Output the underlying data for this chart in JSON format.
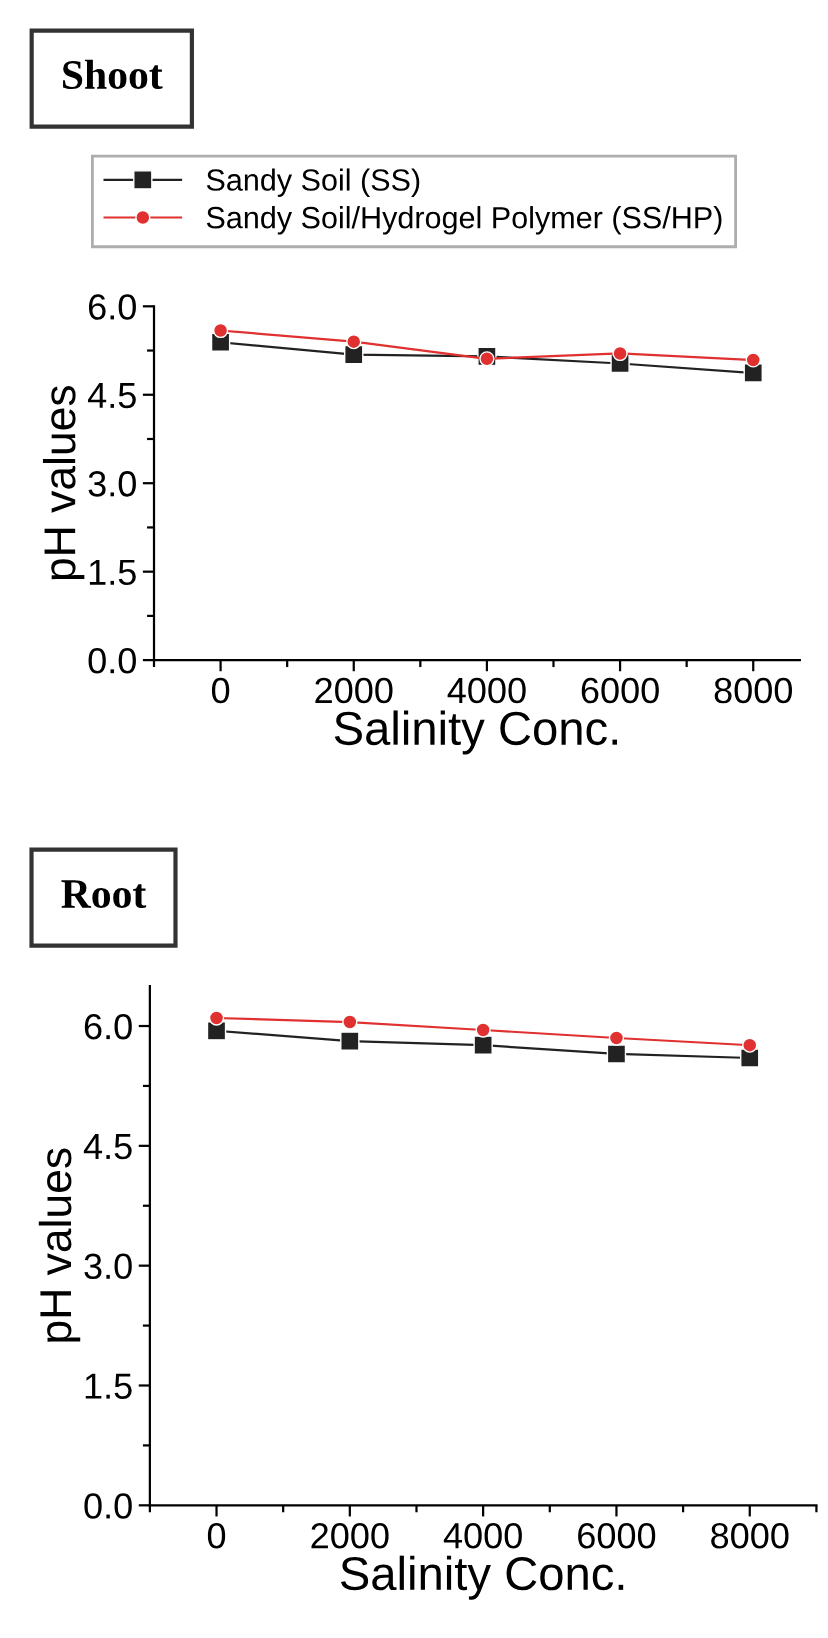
{
  "chart_data": [
    {
      "type": "line",
      "title": "Shoot",
      "xlabel": "Salinity Conc.",
      "ylabel": "pH values",
      "x": [
        0,
        2000,
        4000,
        6000,
        8000
      ],
      "xlim": [
        -1000,
        8700
      ],
      "xticks": [
        0,
        2000,
        4000,
        6000,
        8000
      ],
      "ylim": [
        0,
        6
      ],
      "yticks": [
        {
          "value": 0,
          "label": "0.0"
        },
        {
          "value": 1.5,
          "label": "1.5"
        },
        {
          "value": 3,
          "label": "3.0"
        },
        {
          "value": 4.5,
          "label": "4.5"
        },
        {
          "value": 6,
          "label": "6.0"
        }
      ],
      "grid": false,
      "legend": "top",
      "line_style": "solid",
      "series": [
        {
          "name": "Sandy Soil (SS)",
          "color": "#222222",
          "marker": "square",
          "values": [
            5.39,
            5.18,
            5.15,
            5.03,
            4.87
          ]
        },
        {
          "name": "Sandy Soil/Hydrogel Polymer (SS/HP)",
          "color": "#e03030",
          "marker": "circle",
          "values": [
            5.59,
            5.4,
            5.11,
            5.2,
            5.09
          ]
        }
      ]
    },
    {
      "type": "line",
      "title": "Root",
      "xlabel": "Salinity Conc.",
      "ylabel": "pH values",
      "x": [
        0,
        2000,
        4000,
        6000,
        8000
      ],
      "xlim": [
        -1000,
        9000
      ],
      "xticks": [
        0,
        2000,
        4000,
        6000,
        8000
      ],
      "ylim": [
        0,
        6.5
      ],
      "yticks": [
        {
          "value": 0,
          "label": "0.0"
        },
        {
          "value": 1.5,
          "label": "1.5"
        },
        {
          "value": 3,
          "label": "3.0"
        },
        {
          "value": 4.5,
          "label": "4.5"
        },
        {
          "value": 6,
          "label": "6.0"
        }
      ],
      "grid": false,
      "line_style": "solid",
      "series": [
        {
          "color": "#222222",
          "marker": "square",
          "values": [
            5.94,
            5.81,
            5.76,
            5.65,
            5.6
          ]
        },
        {
          "color": "#e03030",
          "marker": "circle",
          "values": [
            6.1,
            6.05,
            5.95,
            5.85,
            5.76
          ]
        }
      ]
    }
  ]
}
